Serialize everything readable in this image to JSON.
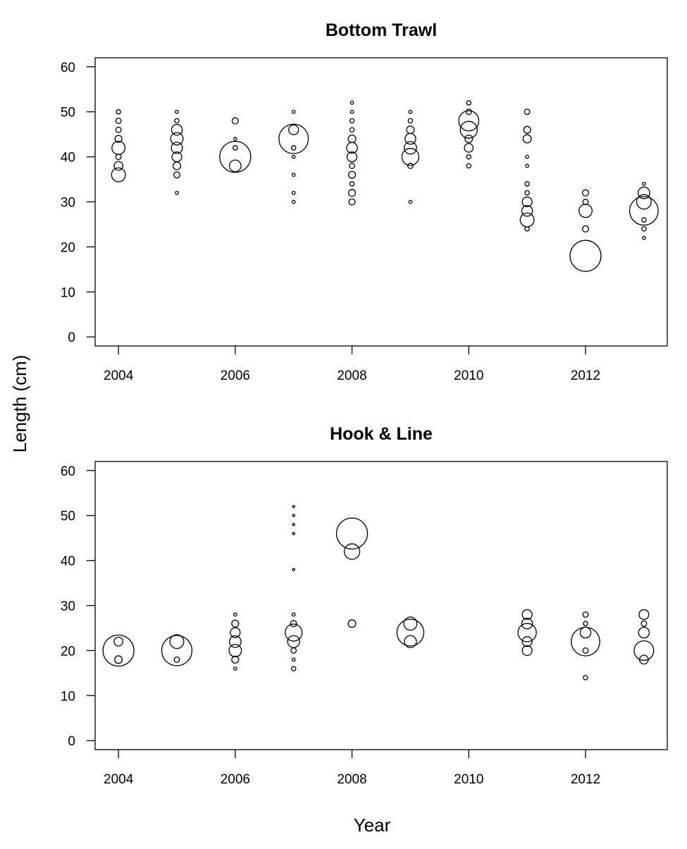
{
  "figure": {
    "xlabel": "Year",
    "ylabel": "Length (cm)"
  },
  "chart_data": [
    {
      "type": "scatter",
      "subtype": "bubble",
      "title": "Bottom Trawl",
      "xlim": [
        2003.6,
        2013.4
      ],
      "ylim": [
        -2,
        62
      ],
      "xticks": [
        2004,
        2006,
        2008,
        2010,
        2012
      ],
      "yticks": [
        0,
        10,
        20,
        30,
        40,
        50,
        60
      ],
      "points": [
        {
          "x": 2004,
          "y": 50,
          "size": 0.02
        },
        {
          "x": 2004,
          "y": 48,
          "size": 0.03
        },
        {
          "x": 2004,
          "y": 46,
          "size": 0.03
        },
        {
          "x": 2004,
          "y": 44,
          "size": 0.05
        },
        {
          "x": 2004,
          "y": 42,
          "size": 0.18
        },
        {
          "x": 2004,
          "y": 40,
          "size": 0.03
        },
        {
          "x": 2004,
          "y": 38,
          "size": 0.08
        },
        {
          "x": 2004,
          "y": 36,
          "size": 0.2
        },
        {
          "x": 2005,
          "y": 50,
          "size": 0.01
        },
        {
          "x": 2005,
          "y": 48,
          "size": 0.02
        },
        {
          "x": 2005,
          "y": 46,
          "size": 0.12
        },
        {
          "x": 2005,
          "y": 44,
          "size": 0.16
        },
        {
          "x": 2005,
          "y": 42,
          "size": 0.13
        },
        {
          "x": 2005,
          "y": 40,
          "size": 0.1
        },
        {
          "x": 2005,
          "y": 38,
          "size": 0.06
        },
        {
          "x": 2005,
          "y": 36,
          "size": 0.04
        },
        {
          "x": 2005,
          "y": 32,
          "size": 0.01
        },
        {
          "x": 2006,
          "y": 48,
          "size": 0.04
        },
        {
          "x": 2006,
          "y": 44,
          "size": 0.01
        },
        {
          "x": 2006,
          "y": 42,
          "size": 0.02
        },
        {
          "x": 2006,
          "y": 40,
          "size": 1.0
        },
        {
          "x": 2006,
          "y": 38,
          "size": 0.14
        },
        {
          "x": 2007,
          "y": 50,
          "size": 0.01
        },
        {
          "x": 2007,
          "y": 46,
          "size": 0.1
        },
        {
          "x": 2007,
          "y": 44,
          "size": 0.9
        },
        {
          "x": 2007,
          "y": 42,
          "size": 0.02
        },
        {
          "x": 2007,
          "y": 40,
          "size": 0.01
        },
        {
          "x": 2007,
          "y": 36,
          "size": 0.01
        },
        {
          "x": 2007,
          "y": 32,
          "size": 0.01
        },
        {
          "x": 2007,
          "y": 30,
          "size": 0.01
        },
        {
          "x": 2008,
          "y": 52,
          "size": 0.01
        },
        {
          "x": 2008,
          "y": 50,
          "size": 0.01
        },
        {
          "x": 2008,
          "y": 48,
          "size": 0.02
        },
        {
          "x": 2008,
          "y": 46,
          "size": 0.02
        },
        {
          "x": 2008,
          "y": 44,
          "size": 0.06
        },
        {
          "x": 2008,
          "y": 42,
          "size": 0.12
        },
        {
          "x": 2008,
          "y": 40,
          "size": 0.1
        },
        {
          "x": 2008,
          "y": 38,
          "size": 0.03
        },
        {
          "x": 2008,
          "y": 36,
          "size": 0.05
        },
        {
          "x": 2008,
          "y": 34,
          "size": 0.02
        },
        {
          "x": 2008,
          "y": 32,
          "size": 0.05
        },
        {
          "x": 2008,
          "y": 30,
          "size": 0.04
        },
        {
          "x": 2009,
          "y": 50,
          "size": 0.01
        },
        {
          "x": 2009,
          "y": 48,
          "size": 0.02
        },
        {
          "x": 2009,
          "y": 46,
          "size": 0.06
        },
        {
          "x": 2009,
          "y": 44,
          "size": 0.12
        },
        {
          "x": 2009,
          "y": 42,
          "size": 0.16
        },
        {
          "x": 2009,
          "y": 40,
          "size": 0.3
        },
        {
          "x": 2009,
          "y": 38,
          "size": 0.03
        },
        {
          "x": 2009,
          "y": 30,
          "size": 0.01
        },
        {
          "x": 2010,
          "y": 52,
          "size": 0.02
        },
        {
          "x": 2010,
          "y": 50,
          "size": 0.03
        },
        {
          "x": 2010,
          "y": 48,
          "size": 0.42
        },
        {
          "x": 2010,
          "y": 46,
          "size": 0.3
        },
        {
          "x": 2010,
          "y": 44,
          "size": 0.06
        },
        {
          "x": 2010,
          "y": 42,
          "size": 0.08
        },
        {
          "x": 2010,
          "y": 40,
          "size": 0.02
        },
        {
          "x": 2010,
          "y": 38,
          "size": 0.02
        },
        {
          "x": 2011,
          "y": 50,
          "size": 0.03
        },
        {
          "x": 2011,
          "y": 46,
          "size": 0.05
        },
        {
          "x": 2011,
          "y": 44,
          "size": 0.07
        },
        {
          "x": 2011,
          "y": 40,
          "size": 0.01
        },
        {
          "x": 2011,
          "y": 38,
          "size": 0.01
        },
        {
          "x": 2011,
          "y": 34,
          "size": 0.02
        },
        {
          "x": 2011,
          "y": 32,
          "size": 0.02
        },
        {
          "x": 2011,
          "y": 30,
          "size": 0.1
        },
        {
          "x": 2011,
          "y": 28,
          "size": 0.12
        },
        {
          "x": 2011,
          "y": 26,
          "size": 0.2
        },
        {
          "x": 2011,
          "y": 24,
          "size": 0.02
        },
        {
          "x": 2012,
          "y": 32,
          "size": 0.04
        },
        {
          "x": 2012,
          "y": 30,
          "size": 0.03
        },
        {
          "x": 2012,
          "y": 28,
          "size": 0.18
        },
        {
          "x": 2012,
          "y": 24,
          "size": 0.04
        },
        {
          "x": 2012,
          "y": 18,
          "size": 1.0
        },
        {
          "x": 2013,
          "y": 34,
          "size": 0.01
        },
        {
          "x": 2013,
          "y": 32,
          "size": 0.14
        },
        {
          "x": 2013,
          "y": 30,
          "size": 0.22
        },
        {
          "x": 2013,
          "y": 28,
          "size": 0.85
        },
        {
          "x": 2013,
          "y": 26,
          "size": 0.02
        },
        {
          "x": 2013,
          "y": 24,
          "size": 0.02
        },
        {
          "x": 2013,
          "y": 22,
          "size": 0.01
        }
      ]
    },
    {
      "type": "scatter",
      "subtype": "bubble",
      "title": "Hook & Line",
      "xlim": [
        2003.6,
        2013.4
      ],
      "ylim": [
        -2,
        62
      ],
      "xticks": [
        2004,
        2006,
        2008,
        2010,
        2012
      ],
      "yticks": [
        0,
        10,
        20,
        30,
        40,
        50,
        60
      ],
      "points": [
        {
          "x": 2004,
          "y": 22,
          "size": 0.08
        },
        {
          "x": 2004,
          "y": 20,
          "size": 1.0
        },
        {
          "x": 2004,
          "y": 18,
          "size": 0.06
        },
        {
          "x": 2005,
          "y": 22,
          "size": 0.2
        },
        {
          "x": 2005,
          "y": 20,
          "size": 0.95
        },
        {
          "x": 2005,
          "y": 18,
          "size": 0.03
        },
        {
          "x": 2006,
          "y": 28,
          "size": 0.01
        },
        {
          "x": 2006,
          "y": 26,
          "size": 0.05
        },
        {
          "x": 2006,
          "y": 24,
          "size": 0.1
        },
        {
          "x": 2006,
          "y": 22,
          "size": 0.14
        },
        {
          "x": 2006,
          "y": 20,
          "size": 0.16
        },
        {
          "x": 2006,
          "y": 18,
          "size": 0.05
        },
        {
          "x": 2006,
          "y": 16,
          "size": 0.01
        },
        {
          "x": 2007,
          "y": 52,
          "size": 0.005
        },
        {
          "x": 2007,
          "y": 50,
          "size": 0.005
        },
        {
          "x": 2007,
          "y": 48,
          "size": 0.005
        },
        {
          "x": 2007,
          "y": 46,
          "size": 0.005
        },
        {
          "x": 2007,
          "y": 38,
          "size": 0.005
        },
        {
          "x": 2007,
          "y": 28,
          "size": 0.01
        },
        {
          "x": 2007,
          "y": 26,
          "size": 0.04
        },
        {
          "x": 2007,
          "y": 24,
          "size": 0.3
        },
        {
          "x": 2007,
          "y": 22,
          "size": 0.15
        },
        {
          "x": 2007,
          "y": 20,
          "size": 0.03
        },
        {
          "x": 2007,
          "y": 18,
          "size": 0.01
        },
        {
          "x": 2007,
          "y": 16,
          "size": 0.02
        },
        {
          "x": 2008,
          "y": 46,
          "size": 1.0
        },
        {
          "x": 2008,
          "y": 42,
          "size": 0.25
        },
        {
          "x": 2008,
          "y": 26,
          "size": 0.06
        },
        {
          "x": 2009,
          "y": 26,
          "size": 0.18
        },
        {
          "x": 2009,
          "y": 24,
          "size": 0.75
        },
        {
          "x": 2009,
          "y": 22,
          "size": 0.15
        },
        {
          "x": 2011,
          "y": 28,
          "size": 0.1
        },
        {
          "x": 2011,
          "y": 26,
          "size": 0.12
        },
        {
          "x": 2011,
          "y": 24,
          "size": 0.35
        },
        {
          "x": 2011,
          "y": 22,
          "size": 0.1
        },
        {
          "x": 2011,
          "y": 20,
          "size": 0.1
        },
        {
          "x": 2012,
          "y": 28,
          "size": 0.03
        },
        {
          "x": 2012,
          "y": 26,
          "size": 0.02
        },
        {
          "x": 2012,
          "y": 24,
          "size": 0.12
        },
        {
          "x": 2012,
          "y": 22,
          "size": 0.85
        },
        {
          "x": 2012,
          "y": 20,
          "size": 0.03
        },
        {
          "x": 2012,
          "y": 14,
          "size": 0.02
        },
        {
          "x": 2013,
          "y": 28,
          "size": 0.1
        },
        {
          "x": 2013,
          "y": 26,
          "size": 0.03
        },
        {
          "x": 2013,
          "y": 24,
          "size": 0.12
        },
        {
          "x": 2013,
          "y": 20,
          "size": 0.4
        },
        {
          "x": 2013,
          "y": 18,
          "size": 0.08
        }
      ]
    }
  ]
}
